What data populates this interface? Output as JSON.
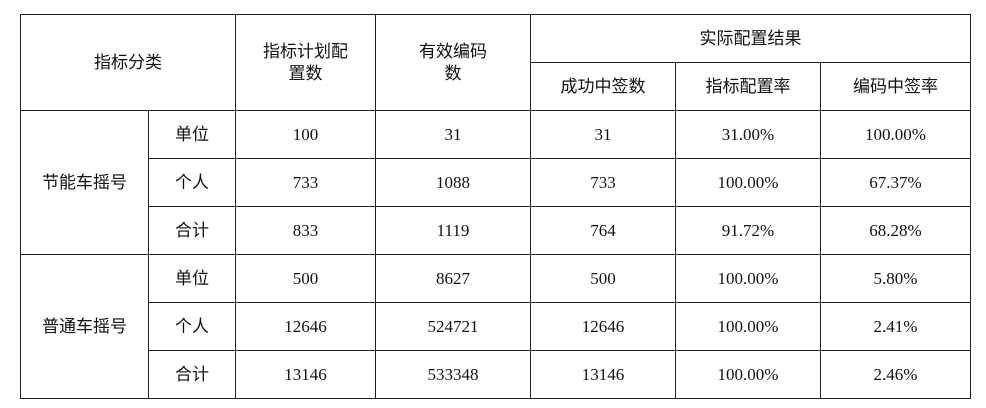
{
  "headers": {
    "category": "指标分类",
    "plan": "指标计划配置数",
    "valid": "有效编码数",
    "actual": "实际配置结果",
    "success": "成功中签数",
    "rate": "指标配置率",
    "win_rate": "编码中签率"
  },
  "groups": [
    {
      "name": "节能车摇号",
      "rows": [
        {
          "type": "单位",
          "plan": "100",
          "valid": "31",
          "success": "31",
          "rate": "31.00%",
          "win_rate": "100.00%"
        },
        {
          "type": "个人",
          "plan": "733",
          "valid": "1088",
          "success": "733",
          "rate": "100.00%",
          "win_rate": "67.37%"
        },
        {
          "type": "合计",
          "plan": "833",
          "valid": "1119",
          "success": "764",
          "rate": "91.72%",
          "win_rate": "68.28%"
        }
      ]
    },
    {
      "name": "普通车摇号",
      "rows": [
        {
          "type": "单位",
          "plan": "500",
          "valid": "8627",
          "success": "500",
          "rate": "100.00%",
          "win_rate": "5.80%"
        },
        {
          "type": "个人",
          "plan": "12646",
          "valid": "524721",
          "success": "12646",
          "rate": "100.00%",
          "win_rate": "2.41%"
        },
        {
          "type": "合计",
          "plan": "13146",
          "valid": "533348",
          "success": "13146",
          "rate": "100.00%",
          "win_rate": "2.46%"
        }
      ]
    }
  ]
}
